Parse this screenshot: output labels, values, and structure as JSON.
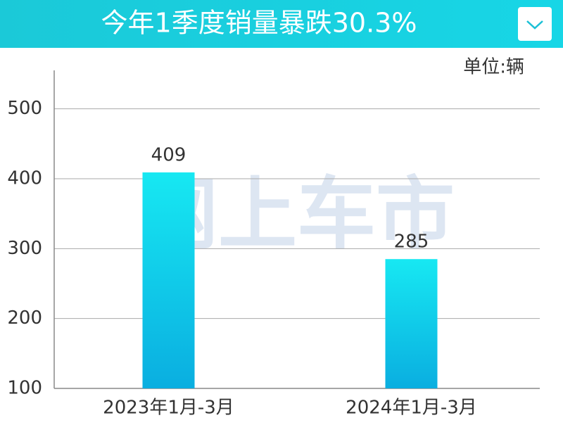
{
  "chart_data": {
    "type": "bar",
    "title": "今年1季度销量暴跌30.3%",
    "unit": "单位:辆",
    "watermark": "网上车市",
    "categories": [
      "2023年1月-3月",
      "2024年1月-3月"
    ],
    "values": [
      409,
      285
    ],
    "color_top": "#17e8f2",
    "color_bottom": "#0aaee0",
    "ylim": [
      100,
      555
    ],
    "yticks": [
      100,
      200,
      300,
      400,
      500
    ],
    "grid": true
  }
}
